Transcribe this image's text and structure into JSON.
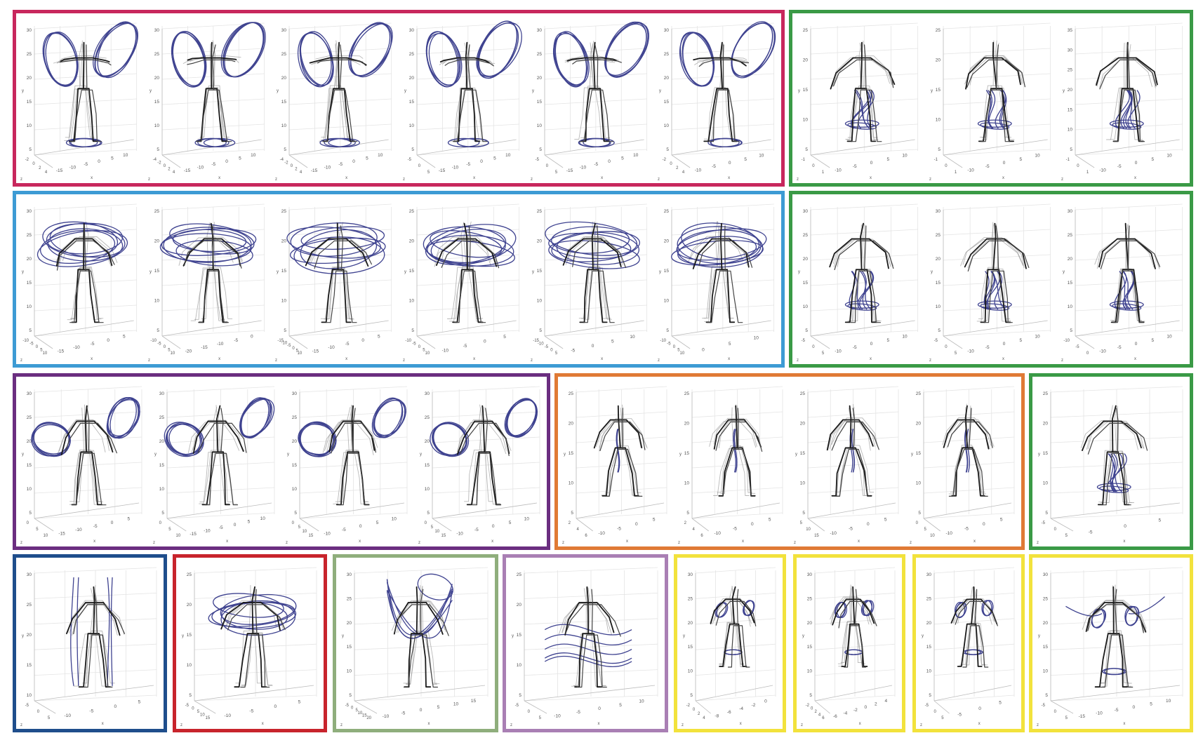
{
  "colors": {
    "crimson": "#c8275d",
    "green": "#3a9a46",
    "sky": "#3d9bd4",
    "purple": "#6b2e80",
    "orange": "#e07a35",
    "navy": "#1f4e8c",
    "red": "#c8242c",
    "sage": "#8fae7c",
    "lilac": "#a97fb4",
    "yellow": "#f2e23c",
    "trail": "#2b2f84",
    "skeleton": "#1a1a1a",
    "ghost": "#9a9a9a",
    "grid": "#e4e4e4"
  },
  "groups": [
    {
      "id": "g1",
      "color": "crimson",
      "panels": [
        {
          "style": "arms-loop",
          "yticks": [
            "5",
            "10",
            "15",
            "20",
            "25",
            "30"
          ],
          "xticks": [
            "-15",
            "-10",
            "-5",
            "0",
            "5",
            "10"
          ],
          "ztick": [
            "-2",
            "0",
            "2",
            "4"
          ],
          "xl": "x",
          "yl": "y",
          "zl": "z"
        },
        {
          "style": "arms-loop",
          "yticks": [
            "5",
            "10",
            "15",
            "20",
            "25",
            "30"
          ],
          "xticks": [
            "-15",
            "-10",
            "-5",
            "0",
            "5",
            "10"
          ],
          "ztick": [
            "-4",
            "-2",
            "0",
            "2",
            "4"
          ],
          "xl": "x",
          "yl": "y",
          "zl": "z"
        },
        {
          "style": "arms-loop",
          "yticks": [
            "5",
            "10",
            "15",
            "20",
            "25",
            "30"
          ],
          "xticks": [
            "-15",
            "-10",
            "-5",
            "0",
            "5",
            "10"
          ],
          "ztick": [
            "-4",
            "-2",
            "0",
            "2",
            "4"
          ],
          "xl": "x",
          "yl": "y",
          "zl": "z"
        },
        {
          "style": "arms-loop",
          "yticks": [
            "5",
            "10",
            "15",
            "20",
            "25",
            "30"
          ],
          "xticks": [
            "-15",
            "-10",
            "-5",
            "0",
            "5",
            "10"
          ],
          "ztick": [
            "-5",
            "0",
            "5"
          ],
          "xl": "x",
          "yl": "y",
          "zl": "z"
        },
        {
          "style": "arms-loop",
          "yticks": [
            "5",
            "10",
            "15",
            "20",
            "25",
            "30"
          ],
          "xticks": [
            "-15",
            "-10",
            "-5",
            "0",
            "5",
            "10"
          ],
          "ztick": [
            "-5",
            "0",
            "5"
          ],
          "xl": "x",
          "yl": "y",
          "zl": "z"
        },
        {
          "style": "arms-loop",
          "yticks": [
            "5",
            "10",
            "15",
            "20",
            "25",
            "30"
          ],
          "xticks": [
            "-10",
            "-5",
            "0",
            "5",
            "10"
          ],
          "ztick": [
            "-2",
            "0",
            "2",
            "4"
          ],
          "xl": "x",
          "yl": "y",
          "zl": "z"
        }
      ]
    },
    {
      "id": "g2",
      "color": "green",
      "panels": [
        {
          "style": "legs-knot",
          "yticks": [
            "5",
            "10",
            "15",
            "20",
            "25"
          ],
          "xticks": [
            "-10",
            "-5",
            "0",
            "5",
            "10"
          ],
          "ztick": [
            "-1",
            "0",
            "1"
          ],
          "xl": "x",
          "yl": "y",
          "zl": "z"
        },
        {
          "style": "legs-knot",
          "yticks": [
            "5",
            "10",
            "15",
            "20",
            "25"
          ],
          "xticks": [
            "-10",
            "-5",
            "0",
            "5",
            "10"
          ],
          "ztick": [
            "-1",
            "0",
            "1"
          ],
          "xl": "x",
          "yl": "y",
          "zl": "z"
        },
        {
          "style": "legs-knot",
          "yticks": [
            "5",
            "10",
            "15",
            "20",
            "25",
            "30",
            "35"
          ],
          "xticks": [
            "-10",
            "-5",
            "0",
            "5",
            "10"
          ],
          "ztick": [
            "-1",
            "0",
            "1"
          ],
          "xl": "x",
          "yl": "y",
          "zl": "z"
        }
      ]
    },
    {
      "id": "g3",
      "color": "sky",
      "panels": [
        {
          "style": "spin",
          "yticks": [
            "5",
            "10",
            "15",
            "20",
            "25",
            "30"
          ],
          "xticks": [
            "-15",
            "-10",
            "-5",
            "0",
            "5"
          ],
          "ztick": [
            "-10",
            "-5",
            "0",
            "5",
            "10"
          ],
          "xl": "x",
          "yl": "y",
          "zl": "z"
        },
        {
          "style": "spin",
          "yticks": [
            "5",
            "10",
            "15",
            "20",
            "25"
          ],
          "xticks": [
            "-20",
            "-15",
            "-10",
            "-5",
            "0"
          ],
          "ztick": [
            "-10",
            "-5",
            "0",
            "5",
            "10"
          ],
          "xl": "x",
          "yl": "y",
          "zl": "z"
        },
        {
          "style": "spin",
          "yticks": [
            "5",
            "10",
            "15",
            "20",
            "25"
          ],
          "xticks": [
            "-15",
            "-10",
            "-5",
            "0",
            "5"
          ],
          "ztick": [
            "-15",
            "-10",
            "-5",
            "0",
            "5",
            "10"
          ],
          "xl": "x",
          "yl": "y",
          "zl": "z"
        },
        {
          "style": "spin",
          "yticks": [
            "5",
            "10",
            "15",
            "20",
            "25"
          ],
          "xticks": [
            "-10",
            "-5",
            "0",
            "5"
          ],
          "ztick": [
            "-10",
            "-5",
            "0",
            "5",
            "10"
          ],
          "xl": "x",
          "yl": "y",
          "zl": "z"
        },
        {
          "style": "spin",
          "yticks": [
            "5",
            "10",
            "15",
            "20",
            "25"
          ],
          "xticks": [
            "-5",
            "0",
            "5",
            "10"
          ],
          "ztick": [
            "-15",
            "-10",
            "-5",
            "0",
            "5"
          ],
          "xl": "x",
          "yl": "y",
          "zl": "z"
        },
        {
          "style": "spin",
          "yticks": [
            "5",
            "10",
            "15",
            "20",
            "25"
          ],
          "xticks": [
            "0",
            "5",
            "10"
          ],
          "ztick": [
            "-10",
            "-5",
            "0",
            "5",
            "10"
          ],
          "xl": "x",
          "yl": "y",
          "zl": "z"
        }
      ]
    },
    {
      "id": "g4",
      "color": "green",
      "panels": [
        {
          "style": "legs-knot",
          "yticks": [
            "5",
            "10",
            "15",
            "20",
            "25",
            "30"
          ],
          "xticks": [
            "-10",
            "-5",
            "0",
            "5",
            "10"
          ],
          "ztick": [
            "-5",
            "0",
            "5"
          ],
          "xl": "x",
          "yl": "y",
          "zl": "z"
        },
        {
          "style": "legs-knot",
          "yticks": [
            "5",
            "10",
            "15",
            "20",
            "25",
            "30"
          ],
          "xticks": [
            "-10",
            "-5",
            "0",
            "5",
            "10"
          ],
          "ztick": [
            "-5",
            "0",
            "5"
          ],
          "xl": "x",
          "yl": "y",
          "zl": "z"
        },
        {
          "style": "legs-knot",
          "yticks": [
            "5",
            "10",
            "15",
            "20",
            "25",
            "30"
          ],
          "xticks": [
            "-10",
            "-5",
            "0",
            "5",
            "10"
          ],
          "ztick": [
            "-10",
            "-5",
            "0"
          ],
          "xl": "x",
          "yl": "y",
          "zl": "z"
        }
      ]
    },
    {
      "id": "g5",
      "color": "purple",
      "panels": [
        {
          "style": "circles",
          "yticks": [
            "5",
            "10",
            "15",
            "20",
            "25",
            "30"
          ],
          "xticks": [
            "-15",
            "-10",
            "-5",
            "0",
            "5"
          ],
          "ztick": [
            "0",
            "5",
            "10"
          ],
          "xl": "x",
          "yl": "y",
          "zl": "z"
        },
        {
          "style": "circles",
          "yticks": [
            "5",
            "10",
            "15",
            "20",
            "25",
            "30"
          ],
          "xticks": [
            "-15",
            "-10",
            "-5",
            "0",
            "5",
            "10"
          ],
          "ztick": [
            "0",
            "5",
            "10"
          ],
          "xl": "x",
          "yl": "y",
          "zl": "z"
        },
        {
          "style": "circles",
          "yticks": [
            "5",
            "10",
            "15",
            "20",
            "25",
            "30"
          ],
          "xticks": [
            "-10",
            "-5",
            "0",
            "5",
            "10"
          ],
          "ztick": [
            "0",
            "5",
            "10",
            "15"
          ],
          "xl": "x",
          "yl": "y",
          "zl": "z"
        },
        {
          "style": "circles",
          "yticks": [
            "5",
            "10",
            "15",
            "20",
            "25",
            "30"
          ],
          "xticks": [
            "-10",
            "-5",
            "0",
            "5",
            "10"
          ],
          "ztick": [
            "0",
            "5",
            "10",
            "15"
          ],
          "xl": "x",
          "yl": "y",
          "zl": "z"
        }
      ]
    },
    {
      "id": "g6",
      "color": "orange",
      "panels": [
        {
          "style": "walk",
          "yticks": [
            "5",
            "10",
            "15",
            "20",
            "25"
          ],
          "xticks": [
            "-10",
            "-5",
            "0",
            "5"
          ],
          "ztick": [
            "2",
            "4",
            "6"
          ],
          "xl": "x",
          "yl": "y",
          "zl": "z"
        },
        {
          "style": "walk",
          "yticks": [
            "5",
            "10",
            "15",
            "20",
            "25"
          ],
          "xticks": [
            "-10",
            "-5",
            "0",
            "5"
          ],
          "ztick": [
            "2",
            "4",
            "6"
          ],
          "xl": "x",
          "yl": "y",
          "zl": "z"
        },
        {
          "style": "walk",
          "yticks": [
            "5",
            "10",
            "15",
            "20",
            "25"
          ],
          "xticks": [
            "-10",
            "-5",
            "0",
            "5"
          ],
          "ztick": [
            "5",
            "10",
            "15"
          ],
          "xl": "x",
          "yl": "y",
          "zl": "z"
        },
        {
          "style": "walk",
          "yticks": [
            "5",
            "10",
            "15",
            "20",
            "25"
          ],
          "xticks": [
            "-10",
            "-5",
            "0",
            "5"
          ],
          "ztick": [
            "0",
            "5",
            "10"
          ],
          "xl": "x",
          "yl": "y",
          "zl": "z"
        }
      ]
    },
    {
      "id": "g7",
      "color": "green",
      "panels": [
        {
          "style": "legs-knot",
          "yticks": [
            "5",
            "10",
            "15",
            "20",
            "25"
          ],
          "xticks": [
            "-5",
            "0",
            "5"
          ],
          "ztick": [
            "-5",
            "0",
            "5"
          ],
          "xl": "x",
          "yl": "y",
          "zl": "z"
        }
      ]
    },
    {
      "id": "g8",
      "color": "navy",
      "panels": [
        {
          "style": "vertical",
          "yticks": [
            "10",
            "15",
            "20",
            "25",
            "30"
          ],
          "xticks": [
            "-10",
            "-5",
            "0",
            "5"
          ],
          "ztick": [
            "-5",
            "0",
            "5"
          ],
          "xl": "x",
          "yl": "y",
          "zl": "z"
        }
      ]
    },
    {
      "id": "g9",
      "color": "red",
      "panels": [
        {
          "style": "spin-small",
          "yticks": [
            "5",
            "10",
            "15",
            "20",
            "25"
          ],
          "xticks": [
            "-10",
            "-5",
            "0",
            "5"
          ],
          "ztick": [
            "-5",
            "0",
            "5",
            "10",
            "15"
          ],
          "xl": "x",
          "yl": "y",
          "zl": "z"
        }
      ]
    },
    {
      "id": "g10",
      "color": "sage",
      "panels": [
        {
          "style": "wide",
          "yticks": [
            "5",
            "10",
            "15",
            "20",
            "25",
            "30"
          ],
          "xticks": [
            "-10",
            "-5",
            "0",
            "5",
            "10",
            "15"
          ],
          "ztick": [
            "-5",
            "0",
            "5",
            "10",
            "15",
            "20"
          ],
          "xl": "x",
          "yl": "y",
          "zl": "z"
        }
      ]
    },
    {
      "id": "g11",
      "color": "lilac",
      "panels": [
        {
          "style": "horizontal",
          "yticks": [
            "5",
            "10",
            "15",
            "20",
            "25"
          ],
          "xticks": [
            "-10",
            "-5",
            "0",
            "5",
            "10"
          ],
          "ztick": [
            "-5",
            "0",
            "5"
          ],
          "xl": "x",
          "yl": "y",
          "zl": "z"
        }
      ]
    },
    {
      "id": "g12",
      "color": "yellow",
      "panels": [
        {
          "style": "hands",
          "yticks": [
            "5",
            "10",
            "15",
            "20",
            "25",
            "30"
          ],
          "xticks": [
            "-8",
            "-6",
            "-4",
            "-2",
            "0"
          ],
          "ztick": [
            "-2",
            "0",
            "2",
            "4"
          ],
          "xl": "x",
          "yl": "y",
          "zl": "z"
        }
      ]
    },
    {
      "id": "g13",
      "color": "yellow",
      "panels": [
        {
          "style": "hands",
          "yticks": [
            "5",
            "10",
            "15",
            "20",
            "25",
            "30"
          ],
          "xticks": [
            "-6",
            "-4",
            "-2",
            "0",
            "2",
            "4"
          ],
          "ztick": [
            "-2",
            "0",
            "2",
            "4",
            "6"
          ],
          "xl": "x",
          "yl": "y",
          "zl": "z"
        }
      ]
    },
    {
      "id": "g14",
      "color": "yellow",
      "panels": [
        {
          "style": "hands",
          "yticks": [
            "5",
            "10",
            "15",
            "20",
            "25",
            "30"
          ],
          "xticks": [
            "-5",
            "0",
            "5"
          ],
          "ztick": [
            "-5",
            "0",
            "5"
          ],
          "xl": "x",
          "yl": "y",
          "zl": "z"
        }
      ]
    },
    {
      "id": "g15",
      "color": "yellow",
      "panels": [
        {
          "style": "hands-wide",
          "yticks": [
            "5",
            "10",
            "15",
            "20",
            "25",
            "30"
          ],
          "xticks": [
            "-15",
            "-10",
            "-5",
            "0",
            "5",
            "10"
          ],
          "ztick": [
            "-5",
            "0",
            "5"
          ],
          "xl": "x",
          "yl": "y",
          "zl": "z"
        }
      ]
    }
  ]
}
